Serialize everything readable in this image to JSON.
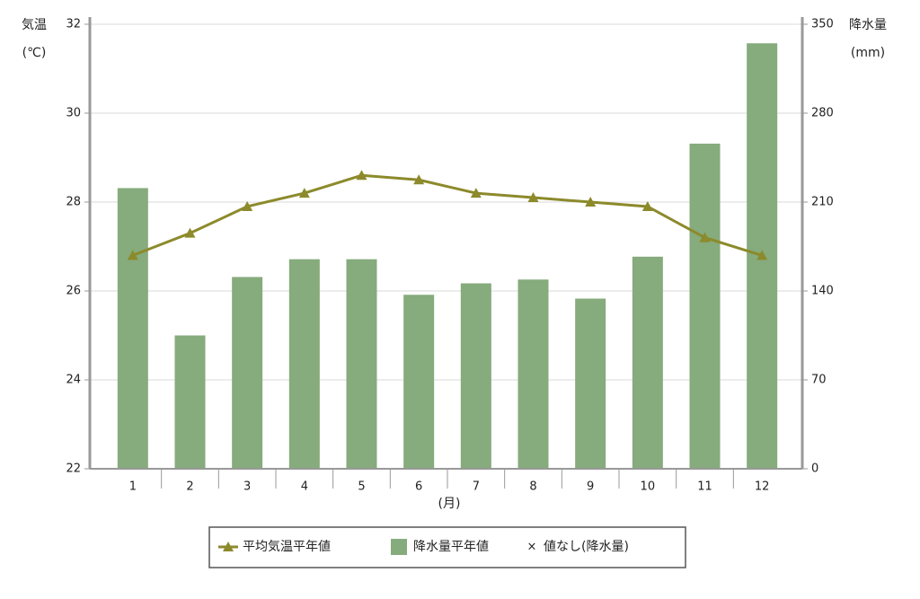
{
  "chart_data": {
    "type": "bar_line",
    "y_label": [
      "気温",
      "(℃)"
    ],
    "y2_label": [
      "降水量",
      "(mm)"
    ],
    "x_label": "(月)",
    "categories": [
      "1",
      "2",
      "3",
      "4",
      "5",
      "6",
      "7",
      "8",
      "9",
      "10",
      "11",
      "12"
    ],
    "series": [
      {
        "name": "平均気温平年値",
        "type": "line",
        "axis": "y",
        "color": "#8c8a2b",
        "values": [
          26.8,
          27.3,
          27.9,
          28.2,
          28.6,
          28.5,
          28.2,
          28.1,
          28.0,
          27.9,
          27.2,
          26.8
        ]
      },
      {
        "name": "降水量平年値",
        "type": "bar",
        "axis": "y2",
        "color": "#86ab7c",
        "values": [
          221,
          105,
          151,
          165,
          165,
          137,
          146,
          149,
          134,
          167,
          256,
          335
        ]
      }
    ],
    "missing_legend": {
      "symbol": "×",
      "text": "値なし(降水量)"
    },
    "ylim": [
      22,
      32
    ],
    "yticks": [
      22,
      24,
      26,
      28,
      30,
      32
    ],
    "y2lim": [
      0,
      350
    ],
    "y2ticks": [
      0,
      70,
      140,
      210,
      280,
      350
    ],
    "grid": true
  }
}
